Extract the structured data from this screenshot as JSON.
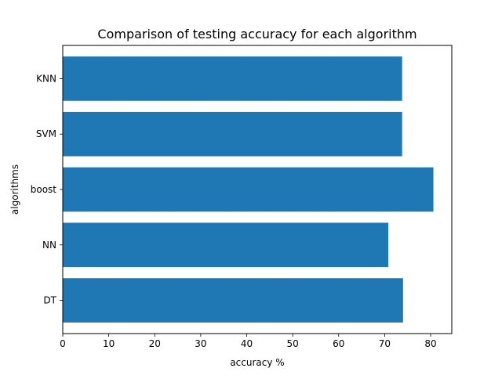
{
  "chart_data": {
    "type": "bar",
    "orientation": "horizontal",
    "title": "Comparison of testing accuracy for each algorithm",
    "xlabel": "accuracy %",
    "ylabel": "algorithms",
    "categories": [
      "DT",
      "NN",
      "boost",
      "SVM",
      "KNN"
    ],
    "values": [
      74,
      70.8,
      80.6,
      73.8,
      73.8
    ],
    "xlim": [
      0,
      84.6
    ],
    "x_ticks": [
      0,
      10,
      20,
      30,
      40,
      50,
      60,
      70,
      80
    ],
    "x_tick_labels": [
      "0",
      "10",
      "20",
      "30",
      "40",
      "50",
      "60",
      "70",
      "80"
    ],
    "grid": false,
    "legend": "none",
    "bar_color": "#1f77b4"
  }
}
